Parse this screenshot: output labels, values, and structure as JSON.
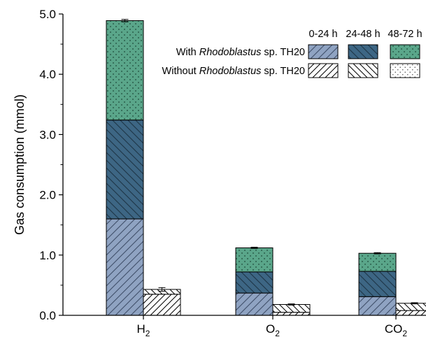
{
  "chart_data": {
    "type": "bar",
    "stacked": true,
    "grouped": true,
    "title": "",
    "ylabel": "Gas consumption (mmol)",
    "ylim": [
      0,
      5.0
    ],
    "yticks": [
      "0.0",
      "1.0",
      "2.0",
      "3.0",
      "4.0",
      "5.0"
    ],
    "categories": [
      {
        "base": "H",
        "sub": "2"
      },
      {
        "base": "O",
        "sub": "2"
      },
      {
        "base": "CO",
        "sub": "2"
      }
    ],
    "grid": false,
    "legend": {
      "position": "top-right",
      "periods": [
        "0-24 h",
        "24-48 h",
        "48-72 h"
      ],
      "rows": [
        {
          "prefix": "With ",
          "italic": "Rhodoblastus",
          "suffix": " sp. TH20"
        },
        {
          "prefix": "Without ",
          "italic": "Rhodoblastus",
          "suffix": " sp. TH20"
        }
      ]
    },
    "colors": {
      "p1": "#8fa3c2",
      "p2": "#3d6684",
      "p3": "#5aa68a"
    },
    "groups": [
      {
        "name": "With Rhodoblastus sp. TH20",
        "stacks": [
          {
            "category": "H2",
            "values": [
              1.6,
              1.64,
              1.65
            ],
            "top_error": 0.02
          },
          {
            "category": "O2",
            "values": [
              0.37,
              0.35,
              0.4
            ],
            "top_error": 0.01
          },
          {
            "category": "CO2",
            "values": [
              0.31,
              0.42,
              0.3
            ],
            "top_error": 0.01
          }
        ]
      },
      {
        "name": "Without Rhodoblastus sp. TH20",
        "stacks": [
          {
            "category": "H2",
            "values": [
              0.35,
              0.08,
              0.0
            ],
            "top_error": 0.03
          },
          {
            "category": "O2",
            "values": [
              0.05,
              0.13,
              0.0
            ],
            "top_error": 0.01
          },
          {
            "category": "CO2",
            "values": [
              0.08,
              0.12,
              0.0
            ],
            "top_error": 0.01
          }
        ]
      }
    ]
  }
}
